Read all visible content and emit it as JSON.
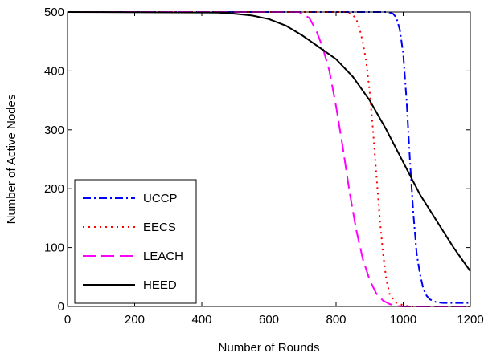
{
  "chart_data": {
    "type": "line",
    "xlabel": "Number of Rounds",
    "ylabel": "Number of Active Nodes",
    "xlim": [
      0,
      1200
    ],
    "ylim": [
      0,
      500
    ],
    "xticks": [
      0,
      200,
      400,
      600,
      800,
      1000,
      1200
    ],
    "yticks": [
      0,
      100,
      200,
      300,
      400,
      500
    ],
    "grid": false,
    "legend": {
      "placement": "bottom-left"
    },
    "series": [
      {
        "name": "UCCP",
        "color": "#0000ff",
        "dash": "dash-dot",
        "x": [
          0,
          900,
          955,
          970,
          980,
          990,
          1000,
          1010,
          1020,
          1030,
          1040,
          1050,
          1060,
          1070,
          1080,
          1090,
          1100,
          1120,
          1200
        ],
        "y": [
          500,
          500,
          500,
          497,
          490,
          470,
          430,
          350,
          250,
          160,
          90,
          55,
          30,
          18,
          12,
          9,
          7,
          6,
          6
        ]
      },
      {
        "name": "EECS",
        "color": "#ff0000",
        "dash": "dotted",
        "x": [
          0,
          830,
          850,
          860,
          870,
          880,
          890,
          900,
          910,
          920,
          930,
          940,
          950,
          960,
          980,
          1000,
          1020,
          1200
        ],
        "y": [
          500,
          500,
          495,
          488,
          472,
          448,
          415,
          365,
          300,
          225,
          150,
          90,
          45,
          20,
          6,
          2,
          0,
          0
        ]
      },
      {
        "name": "LEACH",
        "color": "#ff00ff",
        "dash": "long-dash",
        "x": [
          0,
          690,
          720,
          740,
          760,
          780,
          800,
          820,
          840,
          860,
          880,
          900,
          920,
          940,
          960,
          980,
          1000,
          1200
        ],
        "y": [
          500,
          500,
          490,
          470,
          440,
          400,
          340,
          270,
          195,
          130,
          80,
          45,
          22,
          10,
          4,
          1,
          0,
          0
        ]
      },
      {
        "name": "HEED",
        "color": "#000000",
        "dash": "solid",
        "x": [
          0,
          450,
          500,
          550,
          600,
          650,
          700,
          750,
          800,
          850,
          900,
          950,
          1000,
          1050,
          1100,
          1150,
          1200
        ],
        "y": [
          500,
          499,
          497,
          494,
          488,
          477,
          460,
          440,
          420,
          390,
          350,
          300,
          245,
          190,
          145,
          100,
          60
        ]
      }
    ]
  }
}
